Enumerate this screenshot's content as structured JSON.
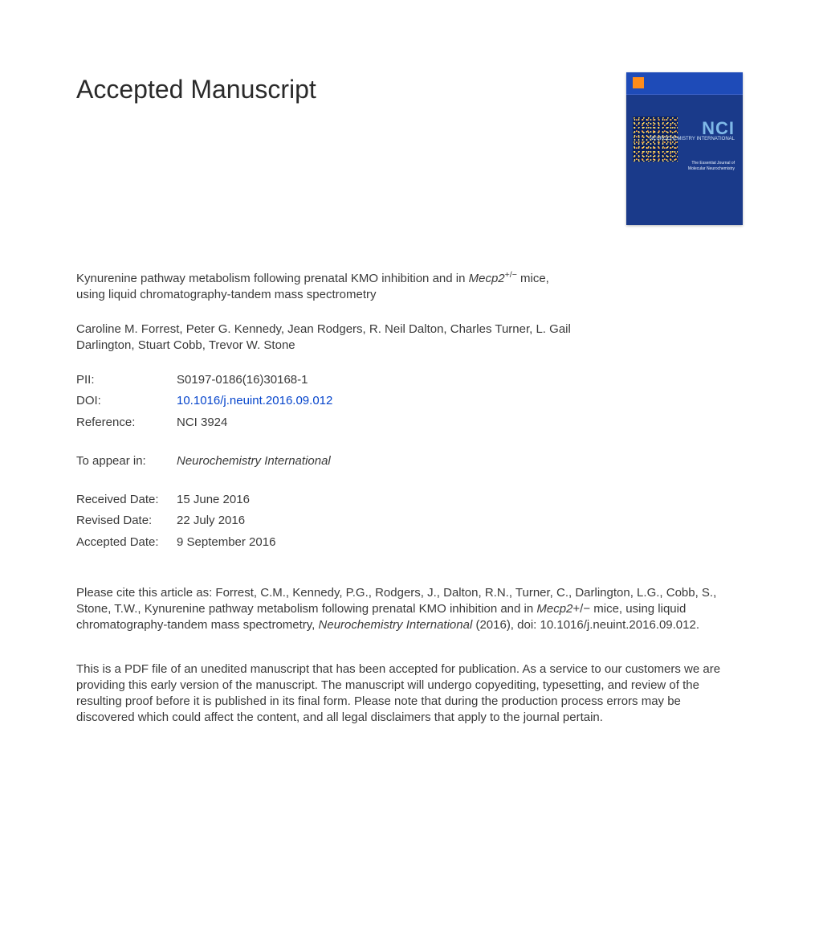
{
  "heading": "Accepted Manuscript",
  "cover": {
    "nci_label": "NCI",
    "nci_sub": "NEUROCHEMISTRY\nINTERNATIONAL",
    "tagline": "The Essential Journal of\nMolecular Neurochemistry"
  },
  "article": {
    "title_pre": "Kynurenine pathway metabolism following prenatal KMO inhibition and in ",
    "title_gene": "Mecp2",
    "title_sup": "+/−",
    "title_post": " mice, using liquid chromatography-tandem mass spectrometry"
  },
  "authors": "Caroline M. Forrest, Peter G. Kennedy, Jean Rodgers, R. Neil Dalton, Charles Turner, L. Gail Darlington, Stuart Cobb, Trevor W. Stone",
  "meta": {
    "pii_label": "PII:",
    "pii_value": "S0197-0186(16)30168-1",
    "doi_label": "DOI:",
    "doi_value": "10.1016/j.neuint.2016.09.012",
    "ref_label": "Reference:",
    "ref_value": "NCI 3924",
    "appear_label": "To appear in:",
    "appear_value": "Neurochemistry International"
  },
  "dates": {
    "received_label": "Received Date:",
    "received_value": "15 June 2016",
    "revised_label": "Revised Date:",
    "revised_value": "22 July 2016",
    "accepted_label": "Accepted Date:",
    "accepted_value": "9 September 2016"
  },
  "citation": {
    "pre": "Please cite this article as: Forrest, C.M., Kennedy, P.G., Rodgers, J., Dalton, R.N., Turner, C., Darlington, L.G., Cobb, S., Stone, T.W., Kynurenine pathway metabolism following prenatal KMO inhibition and in ",
    "gene": "Mecp2",
    "sup": "+/−",
    "mid": " mice, using liquid chromatography-tandem mass spectrometry, ",
    "journal": "Neurochemistry International",
    "post": " (2016), doi: 10.1016/j.neuint.2016.09.012."
  },
  "disclaimer": "This is a PDF file of an unedited manuscript that has been accepted for publication. As a service to our customers we are providing this early version of the manuscript. The manuscript will undergo copyediting, typesetting, and review of the resulting proof before it is published in its final form. Please note that during the production process errors may be discovered which could affect the content, and all legal disclaimers that apply to the journal pertain."
}
